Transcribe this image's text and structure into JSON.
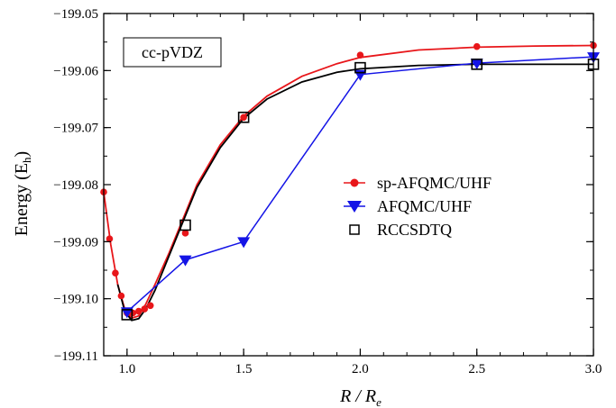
{
  "chart_data": {
    "type": "line",
    "xlabel": "R / R",
    "xlabel_sub": "e",
    "ylabel": "Energy (E",
    "ylabel_sub": "h",
    "ylabel_close": ")",
    "xlim": [
      0.9,
      3.0
    ],
    "ylim": [
      -199.11,
      -199.05
    ],
    "x_ticks": [
      {
        "value": 1.0,
        "label": "1.0"
      },
      {
        "value": 1.5,
        "label": "1.5"
      },
      {
        "value": 2.0,
        "label": "2.0"
      },
      {
        "value": 2.5,
        "label": "2.5"
      },
      {
        "value": 3.0,
        "label": "3.0"
      }
    ],
    "y_ticks": [
      {
        "value": -199.05,
        "label": "−199.05"
      },
      {
        "value": -199.06,
        "label": "−199.06"
      },
      {
        "value": -199.07,
        "label": "−199.07"
      },
      {
        "value": -199.08,
        "label": "−199.08"
      },
      {
        "value": -199.09,
        "label": "−199.09"
      },
      {
        "value": -199.1,
        "label": "−199.10"
      },
      {
        "value": -199.11,
        "label": "−199.11"
      }
    ],
    "annotation": "cc-pVDZ",
    "series": [
      {
        "name": "sp-AFQMC/UHF",
        "color": "#e8161a",
        "marker": "circle",
        "points": [
          {
            "x": 0.9,
            "y": -199.0813
          },
          {
            "x": 0.925,
            "y": -199.0895
          },
          {
            "x": 0.95,
            "y": -199.0955
          },
          {
            "x": 0.975,
            "y": -199.0995
          },
          {
            "x": 1.0,
            "y": -199.1025
          },
          {
            "x": 1.025,
            "y": -199.1025
          },
          {
            "x": 1.05,
            "y": -199.1022
          },
          {
            "x": 1.075,
            "y": -199.1018
          },
          {
            "x": 1.1,
            "y": -199.1012
          },
          {
            "x": 1.25,
            "y": -199.0885
          },
          {
            "x": 1.5,
            "y": -199.0682
          },
          {
            "x": 2.0,
            "y": -199.0573
          },
          {
            "x": 2.5,
            "y": -199.0558
          },
          {
            "x": 3.0,
            "y": -199.0556
          }
        ]
      },
      {
        "name": "AFQMC/UHF",
        "color": "#1414e6",
        "marker": "triangle-down",
        "points": [
          {
            "x": 1.0,
            "y": -199.1023
          },
          {
            "x": 1.25,
            "y": -199.0932
          },
          {
            "x": 1.5,
            "y": -199.09
          },
          {
            "x": 2.0,
            "y": -199.0607
          },
          {
            "x": 2.5,
            "y": -199.0587
          },
          {
            "x": 3.0,
            "y": -199.0576
          }
        ]
      },
      {
        "name": "RCCSDTQ",
        "color": "#000000",
        "marker": "square-open",
        "points": [
          {
            "x": 1.0,
            "y": -199.1028
          },
          {
            "x": 1.25,
            "y": -199.0871
          },
          {
            "x": 1.5,
            "y": -199.0682
          },
          {
            "x": 2.0,
            "y": -199.0595
          },
          {
            "x": 2.5,
            "y": -199.0589
          },
          {
            "x": 3.0,
            "y": -199.0589
          }
        ]
      }
    ],
    "fits": [
      {
        "series": "sp-AFQMC/UHF",
        "color": "#e8161a",
        "points": [
          {
            "x": 0.9,
            "y": -199.0813
          },
          {
            "x": 0.93,
            "y": -199.0905
          },
          {
            "x": 0.96,
            "y": -199.0975
          },
          {
            "x": 0.99,
            "y": -199.1018
          },
          {
            "x": 1.02,
            "y": -199.1034
          },
          {
            "x": 1.05,
            "y": -199.103
          },
          {
            "x": 1.08,
            "y": -199.101
          },
          {
            "x": 1.12,
            "y": -199.0975
          },
          {
            "x": 1.18,
            "y": -199.092
          },
          {
            "x": 1.25,
            "y": -199.085
          },
          {
            "x": 1.3,
            "y": -199.08
          },
          {
            "x": 1.4,
            "y": -199.073
          },
          {
            "x": 1.5,
            "y": -199.068
          },
          {
            "x": 1.6,
            "y": -199.0645
          },
          {
            "x": 1.75,
            "y": -199.061
          },
          {
            "x": 1.9,
            "y": -199.0588
          },
          {
            "x": 2.0,
            "y": -199.0577
          },
          {
            "x": 2.25,
            "y": -199.0564
          },
          {
            "x": 2.5,
            "y": -199.0559
          },
          {
            "x": 2.75,
            "y": -199.0557
          },
          {
            "x": 3.0,
            "y": -199.0556
          }
        ]
      },
      {
        "series": "RCCSDTQ",
        "color": "#000000",
        "points": [
          {
            "x": 0.96,
            "y": -199.0975
          },
          {
            "x": 0.99,
            "y": -199.1022
          },
          {
            "x": 1.02,
            "y": -199.1038
          },
          {
            "x": 1.05,
            "y": -199.1035
          },
          {
            "x": 1.08,
            "y": -199.1018
          },
          {
            "x": 1.12,
            "y": -199.0985
          },
          {
            "x": 1.18,
            "y": -199.0925
          },
          {
            "x": 1.25,
            "y": -199.0855
          },
          {
            "x": 1.3,
            "y": -199.0805
          },
          {
            "x": 1.4,
            "y": -199.0735
          },
          {
            "x": 1.5,
            "y": -199.0684
          },
          {
            "x": 1.6,
            "y": -199.065
          },
          {
            "x": 1.75,
            "y": -199.062
          },
          {
            "x": 1.9,
            "y": -199.0603
          },
          {
            "x": 2.0,
            "y": -199.0597
          },
          {
            "x": 2.25,
            "y": -199.0591
          },
          {
            "x": 2.5,
            "y": -199.0589
          },
          {
            "x": 2.75,
            "y": -199.0589
          },
          {
            "x": 3.0,
            "y": -199.0589
          }
        ]
      }
    ]
  }
}
